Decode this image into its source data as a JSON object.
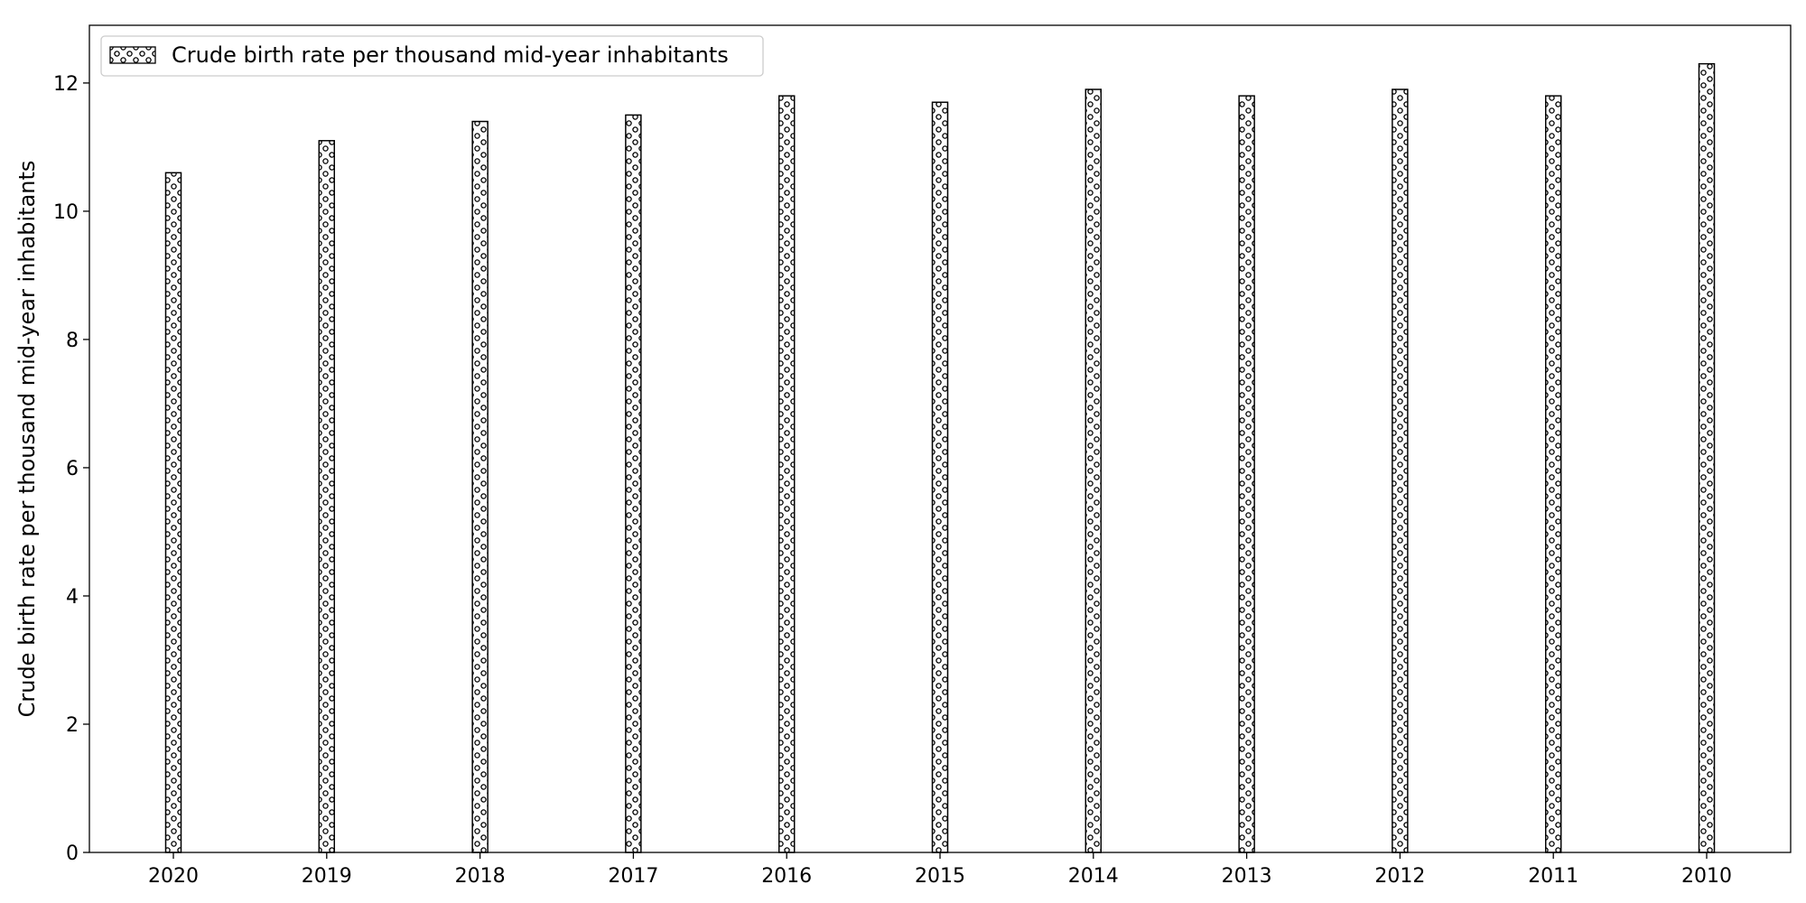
{
  "chart_data": {
    "type": "bar",
    "categories": [
      "2020",
      "2019",
      "2018",
      "2017",
      "2016",
      "2015",
      "2014",
      "2013",
      "2012",
      "2011",
      "2010"
    ],
    "series": [
      {
        "name": "Crude birth rate per thousand mid-year inhabitants",
        "values": [
          10.6,
          11.1,
          11.4,
          11.5,
          11.8,
          11.7,
          11.9,
          11.8,
          11.9,
          11.8,
          12.3
        ]
      }
    ],
    "title": "",
    "xlabel": "",
    "ylabel": "Crude birth rate per thousand mid-year inhabitants",
    "ylim": [
      0,
      12.9
    ],
    "yticks": [
      0,
      2,
      4,
      6,
      8,
      10,
      12
    ],
    "grid": false,
    "legend_position": "top-left",
    "bar_fill": "#ffffff",
    "bar_edge": "#000000",
    "bar_pattern": "small-circles"
  }
}
